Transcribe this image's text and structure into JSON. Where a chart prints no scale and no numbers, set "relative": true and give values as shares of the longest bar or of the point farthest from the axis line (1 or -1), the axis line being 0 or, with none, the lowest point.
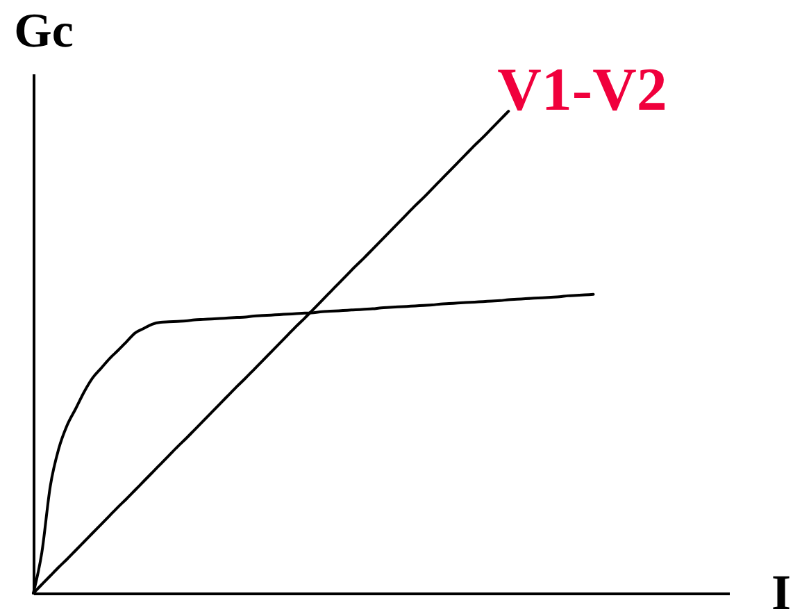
{
  "chart_data": {
    "type": "line",
    "xlabel": "I",
    "ylabel": "Gc",
    "relative": true,
    "categories": [
      null,
      null,
      null,
      null,
      null,
      null,
      null,
      null,
      null,
      null,
      null,
      null,
      null,
      null,
      null,
      null,
      null,
      null,
      null,
      null,
      null,
      null,
      null,
      null,
      null,
      null,
      null,
      null,
      null,
      null,
      null,
      null,
      null,
      null,
      null,
      null,
      null,
      null,
      null,
      null,
      null,
      null,
      null,
      null,
      null,
      null,
      null,
      null,
      null,
      null,
      null,
      null,
      null,
      null,
      null,
      null,
      null,
      null,
      null,
      null,
      null,
      null,
      null,
      null,
      null,
      null,
      null,
      null,
      null,
      null,
      null,
      null,
      null,
      null,
      null,
      null,
      null,
      null,
      null,
      null,
      null,
      null,
      null
    ],
    "series": [
      {
        "name": "V1-V2",
        "color": "#000000",
        "values": [
          0,
          0.018,
          0.036,
          0.054,
          0.071,
          0.089,
          0.107,
          0.125,
          0.143,
          0.161,
          0.179,
          0.196,
          0.214,
          0.232,
          0.25,
          0.268,
          0.286,
          0.304,
          0.321,
          0.339,
          0.357,
          0.375,
          0.393,
          0.411,
          0.429,
          0.446,
          0.464,
          0.482,
          0.5,
          0.518,
          0.536,
          0.554,
          0.571,
          0.589,
          0.607,
          0.625,
          0.643,
          0.661,
          0.679,
          0.696,
          0.714,
          0.732,
          0.75,
          0.768,
          0.786,
          0.804,
          0.821,
          0.839,
          0.857,
          0.875,
          0.893,
          0.911,
          0.929,
          0.946,
          0.964,
          0.982,
          1,
          null,
          null,
          null,
          null,
          null,
          null,
          null,
          null,
          null,
          null,
          null,
          null,
          null,
          null,
          null,
          null,
          null,
          null,
          null,
          null,
          null,
          null,
          null,
          null,
          null,
          null
        ]
      },
      {
        "color": "#000000",
        "values": [
          0,
          0.084,
          0.222,
          0.3,
          0.349,
          0.383,
          0.418,
          0.447,
          0.467,
          0.487,
          0.504,
          0.522,
          0.54,
          0.549,
          0.558,
          0.562,
          0.563,
          0.564,
          0.565,
          0.567,
          0.568,
          0.569,
          0.57,
          0.571,
          0.572,
          0.573,
          0.575,
          0.576,
          0.577,
          0.578,
          0.579,
          0.58,
          0.581,
          0.582,
          0.584,
          0.585,
          0.586,
          0.587,
          0.588,
          0.589,
          0.59,
          0.592,
          0.593,
          0.594,
          0.595,
          0.596,
          0.597,
          0.598,
          0.6,
          0.601,
          0.602,
          0.603,
          0.604,
          0.605,
          0.606,
          0.607,
          0.609,
          0.61,
          0.611,
          0.612,
          0.613,
          0.614,
          0.615,
          0.617,
          0.618,
          0.619,
          0.62,
          null,
          null,
          null,
          null,
          null,
          null,
          null,
          null,
          null,
          null,
          null,
          null,
          null,
          null,
          null,
          null
        ]
      }
    ]
  }
}
